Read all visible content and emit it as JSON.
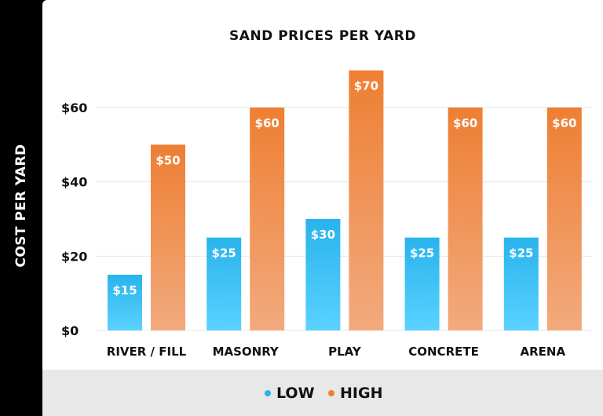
{
  "chart_data": {
    "type": "bar",
    "title": "SAND PRICES PER YARD",
    "xlabel": "",
    "ylabel": "COST PER YARD",
    "ylim": [
      0,
      60
    ],
    "yticks": [
      "$0",
      "$20",
      "$40",
      "$60"
    ],
    "ytick_values": [
      0,
      20,
      40,
      60
    ],
    "grid": true,
    "legend_position": "bottom",
    "categories": [
      "RIVER / FILL",
      "MASONRY",
      "PLAY",
      "CONCRETE",
      "ARENA"
    ],
    "series": [
      {
        "name": "LOW",
        "values": [
          15,
          25,
          30,
          25,
          25
        ],
        "labels": [
          "$15",
          "$25",
          "$30",
          "$25",
          "$25"
        ],
        "color": "#29b3ec",
        "color_bottom": "#5ad2ff"
      },
      {
        "name": "HIGH",
        "values": [
          50,
          60,
          70,
          60,
          60
        ],
        "labels": [
          "$50",
          "$60",
          "$70",
          "$60",
          "$60"
        ],
        "color": "#ee7f33",
        "color_bottom": "#f2aa7e"
      }
    ]
  }
}
